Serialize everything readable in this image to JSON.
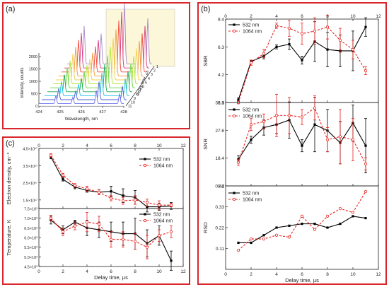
{
  "panel_a": {
    "label": "(a)",
    "delay_labels": [
      "1",
      "2",
      "3",
      "4",
      "5",
      "6",
      "7",
      "8",
      "9",
      "10",
      "11"
    ],
    "trace_colors": [
      "#6c72f0",
      "#4b61cf",
      "#22c3ea",
      "#19a955",
      "#69d23d",
      "#aee830",
      "#f4cf49",
      "#f29a39",
      "#ef4a3a",
      "#d63a7f",
      "#a787c9"
    ]
  },
  "panel_b": {
    "label": "(b)"
  },
  "panel_c": {
    "label": "(c)"
  },
  "chart_data": [
    {
      "type": "line",
      "panel": "a",
      "xlabel": "Wavelength, nm",
      "ylabel": "Intensity, counts",
      "zlabel": "Delay time, µs",
      "xticks": [
        "424",
        "425",
        "426",
        "427",
        "428"
      ],
      "yticks": [
        "0",
        "500",
        "1000",
        "1500",
        "2000"
      ],
      "zticks": [
        "1",
        "2",
        "3",
        "4",
        "5",
        "6",
        "7",
        "8",
        "9",
        "10",
        "11"
      ],
      "xlim": [
        424,
        428
      ]
    },
    {
      "type": "line",
      "panel": "b-top",
      "ylabel": "SBR",
      "ylim": [
        2.1,
        8.4
      ],
      "yticks": [
        "2.1",
        "4.2",
        "6.3",
        "8.4"
      ],
      "x": [
        1,
        2,
        3,
        4,
        5,
        6,
        7,
        8,
        9,
        10,
        11
      ],
      "series": [
        {
          "name": "532 nm",
          "color": "#000000",
          "dashed": false,
          "values": [
            2.3,
            5.2,
            5.6,
            6.3,
            6.5,
            5.3,
            6.7,
            6.1,
            6.0,
            6.0,
            7.8
          ],
          "errors": [
            0.15,
            0.1,
            0.2,
            0.15,
            0.4,
            0.3,
            1.5,
            1.3,
            1.2,
            1.5,
            0.7
          ]
        },
        {
          "name": "1064 nm",
          "color": "#e8221e",
          "dashed": true,
          "values": [
            2.1,
            5.1,
            5.8,
            7.9,
            7.7,
            7.3,
            7.5,
            7.8,
            6.8,
            6.1,
            4.5
          ],
          "errors": [
            0.1,
            0.2,
            0.3,
            0.2,
            0.6,
            0.8,
            1.0,
            0.9,
            0.9,
            0.7,
            0.3
          ]
        }
      ]
    },
    {
      "type": "line",
      "panel": "b-middle",
      "ylabel": "SNR",
      "ylim": [
        9.2,
        36.8
      ],
      "yticks": [
        "9.2",
        "18.4",
        "27.6",
        "36.8"
      ],
      "x": [
        1,
        2,
        3,
        4,
        5,
        6,
        7,
        8,
        9,
        10,
        11
      ],
      "series": [
        {
          "name": "532 nm",
          "color": "#000000",
          "dashed": false,
          "values": [
            18.0,
            24.5,
            28.5,
            29.5,
            31.0,
            22.5,
            29.5,
            27.5,
            23.5,
            30.0,
            22.5
          ],
          "errors": [
            1.2,
            1.2,
            2.5,
            3.0,
            6.0,
            2.0,
            9.0,
            7.0,
            7.0,
            6.0,
            9.0
          ]
        },
        {
          "name": "1064 nm",
          "color": "#e8221e",
          "dashed": true,
          "values": [
            17.0,
            29.5,
            30.5,
            32.5,
            32.5,
            32.0,
            35.0,
            24.5,
            25.5,
            24.5,
            16.5
          ],
          "errors": [
            1.0,
            2.0,
            2.5,
            7.0,
            6.0,
            2.5,
            4.0,
            4.0,
            9.0,
            7.0,
            2.0
          ]
        }
      ]
    },
    {
      "type": "line",
      "panel": "b-bottom",
      "ylabel": "RSD",
      "xlabel": "Delay time, µs",
      "ylim": [
        0.0,
        0.44
      ],
      "yticks": [
        "0.11",
        "0.22",
        "0.33",
        "0.44"
      ],
      "xticks": [
        "0",
        "2",
        "4",
        "6",
        "8",
        "10",
        "12"
      ],
      "x": [
        1,
        2,
        3,
        4,
        5,
        6,
        7,
        8,
        9,
        10,
        11
      ],
      "series": [
        {
          "name": "532 nm",
          "color": "#000000",
          "dashed": false,
          "values": [
            0.14,
            0.14,
            0.18,
            0.22,
            0.23,
            0.24,
            0.24,
            0.22,
            0.24,
            0.28,
            0.27
          ]
        },
        {
          "name": "1064 nm",
          "color": "#e8221e",
          "dashed": true,
          "values": [
            0.1,
            0.16,
            0.16,
            0.18,
            0.17,
            0.28,
            0.21,
            0.28,
            0.32,
            0.3,
            0.41
          ]
        }
      ]
    },
    {
      "type": "line",
      "panel": "c-top",
      "ylabel": "Electron density, cm⁻³",
      "ylim": [
        1.0,
        4.5
      ],
      "yticks": [
        "1.5×10¹⁷",
        "2.5×10¹⁷",
        "3.5×10¹⁷",
        "4.5×10¹⁷"
      ],
      "xticks": [
        "0",
        "2",
        "4",
        "6",
        "8",
        "10",
        "12"
      ],
      "x": [
        1,
        2,
        3,
        4,
        5,
        6,
        7,
        8,
        9,
        10,
        11
      ],
      "y_unit_multiplier": "×10¹⁷",
      "series": [
        {
          "name": "532 nm",
          "color": "#000000",
          "dashed": false,
          "values": [
            4.0,
            2.7,
            2.25,
            2.05,
            1.95,
            2.0,
            1.75,
            1.65,
            1.1,
            1.1,
            1.15
          ],
          "errors": [
            0.1,
            0.1,
            0.1,
            0.1,
            0.15,
            0.3,
            0.4,
            0.4,
            0.3,
            0.2,
            0.2
          ]
        },
        {
          "name": "1064 nm",
          "color": "#e8221e",
          "dashed": true,
          "values": [
            4.1,
            2.95,
            2.35,
            2.15,
            1.95,
            1.6,
            1.45,
            1.5,
            1.35,
            1.2,
            1.2
          ],
          "errors": [
            0.1,
            0.1,
            0.1,
            0.15,
            0.15,
            0.15,
            0.2,
            0.25,
            0.2,
            0.25,
            0.1
          ]
        }
      ]
    },
    {
      "type": "line",
      "panel": "c-bottom",
      "ylabel": "Temperature, K",
      "xlabel": "Delay time, µs",
      "ylim": [
        4.5,
        7.5
      ],
      "yticks": [
        "4.5×10³",
        "5.0×10³",
        "5.5×10³",
        "6.0×10³",
        "6.5×10³",
        "7.0×10³",
        "7.5×10³"
      ],
      "xticks": [
        "0",
        "2",
        "4",
        "6",
        "8",
        "10",
        "12"
      ],
      "x": [
        1,
        2,
        3,
        4,
        5,
        6,
        7,
        8,
        9,
        10,
        11
      ],
      "y_unit_multiplier": "×10³",
      "series": [
        {
          "name": "532 nm",
          "color": "#000000",
          "dashed": false,
          "values": [
            6.9,
            6.4,
            6.8,
            6.5,
            6.4,
            6.3,
            6.2,
            6.2,
            5.7,
            6.1,
            4.8
          ],
          "errors": [
            0.2,
            0.2,
            0.1,
            0.4,
            0.4,
            0.5,
            0.6,
            0.8,
            0.7,
            0.5,
            0.5
          ]
        },
        {
          "name": "1064 nm",
          "color": "#e8221e",
          "dashed": true,
          "values": [
            7.0,
            6.3,
            6.6,
            6.8,
            6.7,
            5.9,
            5.9,
            5.8,
            5.5,
            6.1,
            6.3
          ],
          "errors": [
            0.15,
            0.2,
            0.2,
            0.5,
            0.4,
            0.4,
            0.4,
            0.4,
            0.6,
            0.3,
            0.3
          ]
        }
      ]
    }
  ]
}
